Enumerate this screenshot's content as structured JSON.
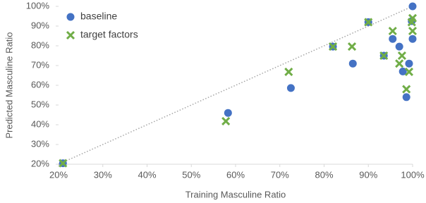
{
  "chart_data": {
    "type": "scatter",
    "xlabel": "Training Masculine Ratio",
    "ylabel": "Predicted Masculine Ratio",
    "xlim": [
      20,
      100
    ],
    "ylim": [
      20,
      100
    ],
    "xticks": [
      {
        "value": 20,
        "label": "20%"
      },
      {
        "value": 30,
        "label": "30%"
      },
      {
        "value": 40,
        "label": "40%"
      },
      {
        "value": 50,
        "label": "50%"
      },
      {
        "value": 60,
        "label": "60%"
      },
      {
        "value": 70,
        "label": "70%"
      },
      {
        "value": 80,
        "label": "80%"
      },
      {
        "value": 90,
        "label": "90%"
      },
      {
        "value": 100,
        "label": "100%"
      }
    ],
    "yticks": [
      {
        "value": 20,
        "label": "20%"
      },
      {
        "value": 30,
        "label": "30%"
      },
      {
        "value": 40,
        "label": "40%"
      },
      {
        "value": 50,
        "label": "50%"
      },
      {
        "value": 60,
        "label": "60%"
      },
      {
        "value": 70,
        "label": "70%"
      },
      {
        "value": 80,
        "label": "80%"
      },
      {
        "value": 90,
        "label": "90%"
      },
      {
        "value": 100,
        "label": "100%"
      }
    ],
    "identity_line": true,
    "legend_loc": "upper left",
    "series": [
      {
        "name": "baseline",
        "color": "#4472c4",
        "marker": "circle",
        "x": [
          21,
          58.3,
          72.5,
          82,
          86.5,
          90,
          93.5,
          95.5,
          97,
          97.8,
          98.6,
          99.2,
          99.8,
          100,
          100
        ],
        "values": [
          20.5,
          46,
          58.6,
          79.6,
          71,
          92,
          75,
          83.5,
          79.6,
          67,
          54,
          71,
          92.5,
          83.5,
          100
        ]
      },
      {
        "name": "target factors",
        "color": "#70ad47",
        "marker": "x",
        "x": [
          21,
          57.8,
          72,
          82,
          86.3,
          90,
          93.5,
          95.5,
          97,
          97.6,
          98.6,
          99.2,
          100,
          100,
          99.8
        ],
        "values": [
          20.5,
          41.8,
          66.8,
          79.6,
          79.6,
          92,
          75,
          87.5,
          71,
          75,
          58,
          66.8,
          87.5,
          94,
          92
        ]
      }
    ]
  }
}
